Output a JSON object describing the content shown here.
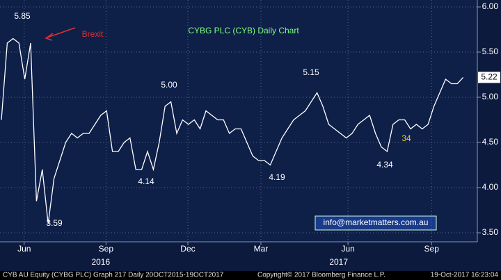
{
  "chart_data": {
    "type": "line",
    "title": "CYBG PLC (CYB) Daily Chart",
    "series": [
      {
        "name": "CYB AU Equity",
        "color": "#ffffff",
        "values": [
          4.75,
          5.6,
          5.65,
          5.6,
          5.2,
          5.6,
          3.85,
          4.2,
          3.6,
          4.1,
          4.3,
          4.5,
          4.6,
          4.55,
          4.6,
          4.6,
          4.7,
          4.8,
          4.85,
          4.4,
          4.4,
          4.5,
          4.55,
          4.2,
          4.2,
          4.4,
          4.2,
          4.5,
          4.9,
          4.95,
          4.6,
          4.75,
          4.7,
          4.75,
          4.65,
          4.85,
          4.8,
          4.75,
          4.75,
          4.6,
          4.65,
          4.65,
          4.5,
          4.35,
          4.3,
          4.3,
          4.25,
          4.4,
          4.55,
          4.65,
          4.75,
          4.8,
          4.85,
          4.95,
          5.05,
          4.9,
          4.7,
          4.65,
          4.6,
          4.55,
          4.6,
          4.7,
          4.75,
          4.8,
          4.6,
          4.45,
          4.4,
          4.7,
          4.75,
          4.75,
          4.65,
          4.7,
          4.65,
          4.7,
          4.9,
          5.05,
          5.2,
          5.15,
          5.15,
          5.22
        ]
      }
    ],
    "xlim": [
      0,
      79
    ],
    "xticks": [
      {
        "value": 3.9,
        "label": "Jun"
      },
      {
        "value": 17.9,
        "label": "Sep"
      },
      {
        "value": 31.9,
        "label": "Dec"
      },
      {
        "value": 44.4,
        "label": "Mar"
      },
      {
        "value": 59.3,
        "label": "Jun"
      },
      {
        "value": 73.6,
        "label": "Sep"
      }
    ],
    "year_ticks": [
      {
        "value": 17,
        "label": "2016"
      },
      {
        "value": 57.7,
        "label": "2017"
      }
    ],
    "ylim": [
      3.4,
      6.05
    ],
    "yticks": [
      {
        "value": 3.5,
        "label": "3.50"
      },
      {
        "value": 4,
        "label": "4.00"
      },
      {
        "value": 4.5,
        "label": "4.50"
      },
      {
        "value": 5,
        "label": "5.00"
      },
      {
        "value": 5.5,
        "label": "5.50"
      },
      {
        "value": 6,
        "label": "6.00"
      }
    ],
    "grid": true,
    "last_price_label": "5.22",
    "annotations": [
      "5.85",
      "3.59",
      "4.14",
      "5.00",
      "4.19",
      "5.15",
      "4.34",
      "34",
      "Brexit"
    ],
    "watermark": "info@marketmatters.com.au",
    "footer": [
      "CYB AU Equity (CYBG PLC) Graph 217  Daily 20OCT2015-19OCT2017",
      "Copyright© 2017 Bloomberg Finance L.P.",
      "19-Oct-2017 16:23:04"
    ]
  }
}
